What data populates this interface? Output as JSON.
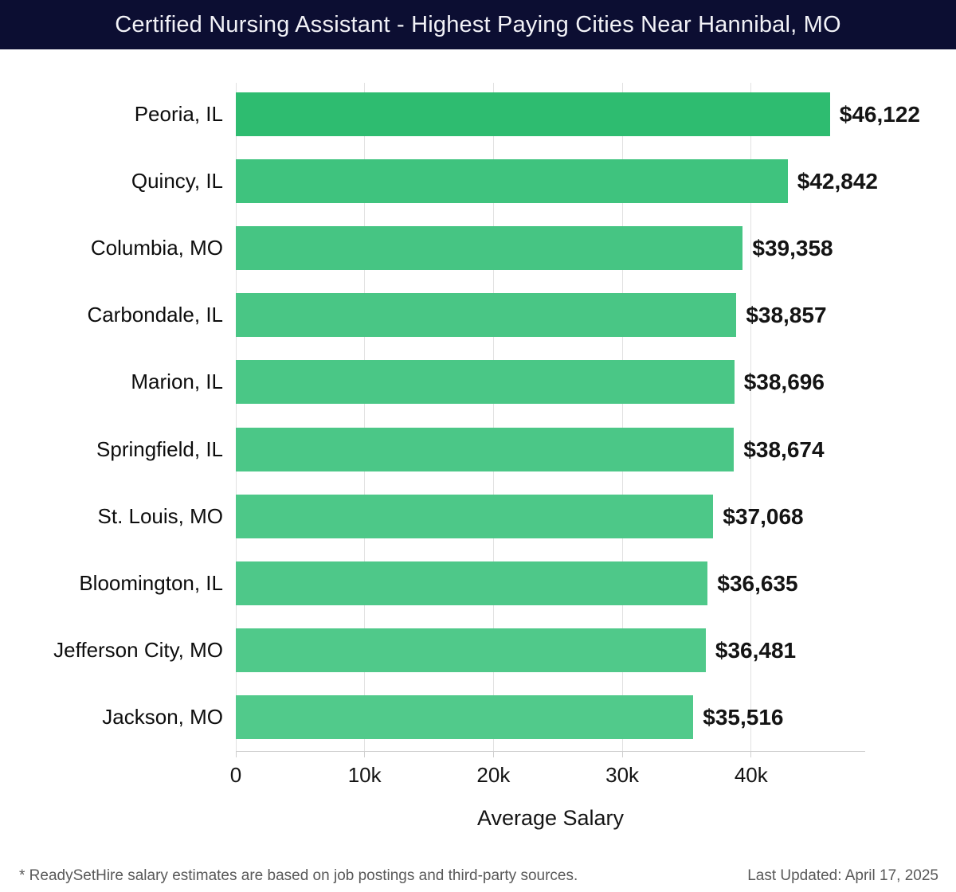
{
  "header": {
    "title": "Certified Nursing Assistant - Highest Paying Cities Near Hannibal, MO",
    "bg_color": "#0c0e32",
    "text_color": "#f2f2f7"
  },
  "chart_data": {
    "type": "bar",
    "orientation": "horizontal",
    "title": "Certified Nursing Assistant - Highest Paying Cities Near Hannibal, MO",
    "categories": [
      "Peoria, IL",
      "Quincy, IL",
      "Columbia, MO",
      "Carbondale, IL",
      "Marion, IL",
      "Springfield, IL",
      "St. Louis, MO",
      "Bloomington, IL",
      "Jefferson City, MO",
      "Jackson, MO"
    ],
    "values": [
      46122,
      42842,
      39358,
      38857,
      38696,
      38674,
      37068,
      36635,
      36481,
      35516
    ],
    "value_labels": [
      "$46,122",
      "$42,842",
      "$39,358",
      "$38,857",
      "$38,696",
      "$38,674",
      "$37,068",
      "$36,635",
      "$36,481",
      "$35,516"
    ],
    "bar_colors": [
      "#2ebc70",
      "#3fc37e",
      "#46c583",
      "#49c685",
      "#4ac786",
      "#4bc787",
      "#4dc888",
      "#4ec889",
      "#50c98a",
      "#51ca8b"
    ],
    "xlabel": "Average Salary",
    "x_ticks": [
      {
        "value": 0,
        "label": "0"
      },
      {
        "value": 10000,
        "label": "10k"
      },
      {
        "value": 20000,
        "label": "20k"
      },
      {
        "value": 30000,
        "label": "30k"
      },
      {
        "value": 40000,
        "label": "40k"
      }
    ],
    "xlim": [
      0,
      48860
    ],
    "grid": "vertical",
    "gridline_color": "#e2e2e2",
    "axisline_color": "#cfcfcf"
  },
  "footer": {
    "disclaimer": "* ReadySetHire salary estimates are based on job postings and third-party sources.",
    "last_updated": "Last Updated: April 17, 2025"
  }
}
